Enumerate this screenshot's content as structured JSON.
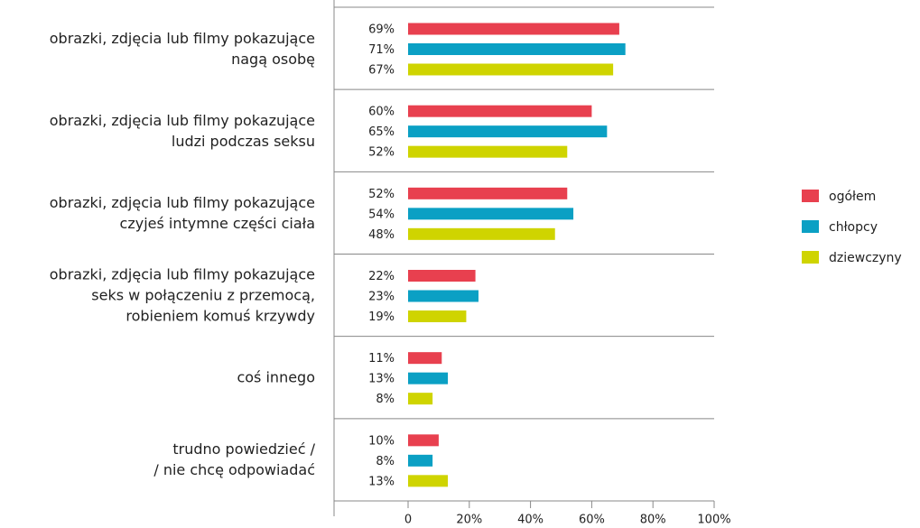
{
  "chart_data": {
    "type": "bar",
    "orientation": "horizontal",
    "categories": [
      "obrazki, zdjęcia lub filmy pokazujące\nnagą osobę",
      "obrazki, zdjęcia lub filmy pokazujące\nludzi podczas seksu",
      "obrazki, zdjęcia lub filmy pokazujące\nczyjeś intymne części ciała",
      "obrazki, zdjęcia lub filmy pokazujące\nseks w połączeniu z przemocą,\nrobieniem komuś krzywdy",
      "coś innego",
      "trudno powiedzieć /\n/ nie chcę odpowiadać"
    ],
    "series": [
      {
        "name": "ogółem",
        "color": "#e8404f",
        "values": [
          69,
          60,
          52,
          22,
          11,
          10
        ],
        "value_labels": [
          "69%",
          "60%",
          "52%",
          "22%",
          "11%",
          "10%"
        ]
      },
      {
        "name": "chłopcy",
        "color": "#0ba0c4",
        "values": [
          71,
          65,
          54,
          23,
          13,
          8
        ],
        "value_labels": [
          "71%",
          "65%",
          "54%",
          "23%",
          "13%",
          "8%"
        ]
      },
      {
        "name": "dziewczyny",
        "color": "#cfd400",
        "values": [
          67,
          52,
          48,
          19,
          8,
          13
        ],
        "value_labels": [
          "67%",
          "52%",
          "48%",
          "19%",
          "8%",
          "13%"
        ]
      }
    ],
    "xlim": [
      0,
      100
    ],
    "xticks": [
      0,
      {
        "value": 20,
        "label": "20%"
      },
      {
        "value": 40,
        "label": "40%"
      },
      {
        "value": 60,
        "label": "60%"
      },
      {
        "value": 80,
        "label": "80%"
      },
      {
        "value": 100,
        "label": "100%"
      }
    ],
    "legend": "right"
  }
}
